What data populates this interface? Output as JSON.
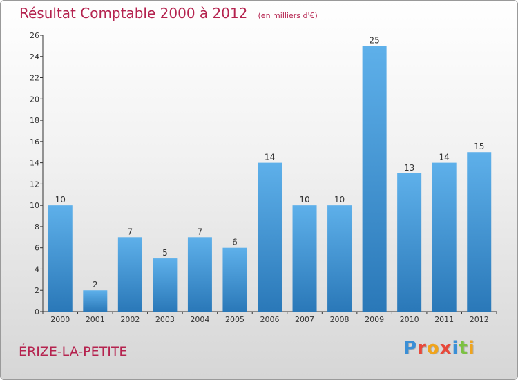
{
  "chart_data": {
    "type": "bar",
    "title": "Résultat Comptable 2000 à 2012",
    "subtitle": "(en milliers d'€)",
    "categories": [
      "2000",
      "2001",
      "2002",
      "2003",
      "2004",
      "2005",
      "2006",
      "2007",
      "2008",
      "2009",
      "2010",
      "2011",
      "2012"
    ],
    "values": [
      10,
      2,
      7,
      5,
      7,
      6,
      14,
      10,
      10,
      25,
      13,
      14,
      15
    ],
    "ylim": [
      0,
      26
    ],
    "yticks": [
      0,
      2,
      4,
      6,
      8,
      10,
      12,
      14,
      16,
      18,
      20,
      22,
      24,
      26
    ],
    "xlabel": "",
    "ylabel": "",
    "grid": false,
    "bar_color_top": "#5eb0ea",
    "bar_color_bottom": "#2a78b8"
  },
  "footer": {
    "commune": "ÉRIZE-LA-PETITE",
    "brand_letters": [
      {
        "ch": "P",
        "color": "#3a8fd6"
      },
      {
        "ch": "r",
        "color": "#e8483a"
      },
      {
        "ch": "o",
        "color": "#f0a41c"
      },
      {
        "ch": "x",
        "color": "#e8483a"
      },
      {
        "ch": "i",
        "color": "#3a8fd6"
      },
      {
        "ch": "t",
        "color": "#7cc242"
      },
      {
        "ch": "i",
        "color": "#f0a41c"
      }
    ]
  },
  "colors": {
    "accent": "#b5234f",
    "axis": "#333333"
  }
}
